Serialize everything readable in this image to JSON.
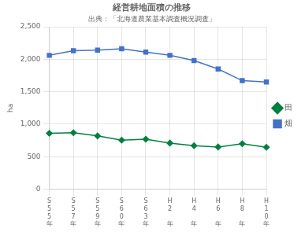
{
  "chart_data": {
    "type": "line",
    "title": "経営耕地面積の推移",
    "subtitle": "出典：「北海道農業基本調査概況調査」",
    "ylabel": "ha",
    "categories": [
      "S\n5\n5\n年",
      "S\n5\n7\n年",
      "S\n5\n9\n年",
      "S\n6\n0\n年",
      "S\n6\n3\n年",
      "H\n2\n \n年",
      "H\n4\n \n年",
      "H\n6\n \n年",
      "H\n8\n \n年",
      "H\n1\n0\n年"
    ],
    "series": [
      {
        "name": "田",
        "color": "#008040",
        "marker": "diamond",
        "values": [
          860,
          870,
          820,
          755,
          770,
          710,
          670,
          650,
          700,
          645
        ]
      },
      {
        "name": "畑",
        "color": "#4472C4",
        "marker": "square",
        "values": [
          2060,
          2130,
          2140,
          2160,
          2110,
          2060,
          1980,
          1850,
          1670,
          1650
        ]
      }
    ],
    "ylim": [
      0,
      2500
    ],
    "yticks": [
      0,
      500,
      {
        "value": 1000,
        "label": "1,000"
      },
      {
        "value": 1500,
        "label": "1,500"
      },
      {
        "value": 2000,
        "label": "2,000"
      },
      {
        "value": 2500,
        "label": "2,500"
      }
    ],
    "grid": true,
    "legend": "right"
  }
}
